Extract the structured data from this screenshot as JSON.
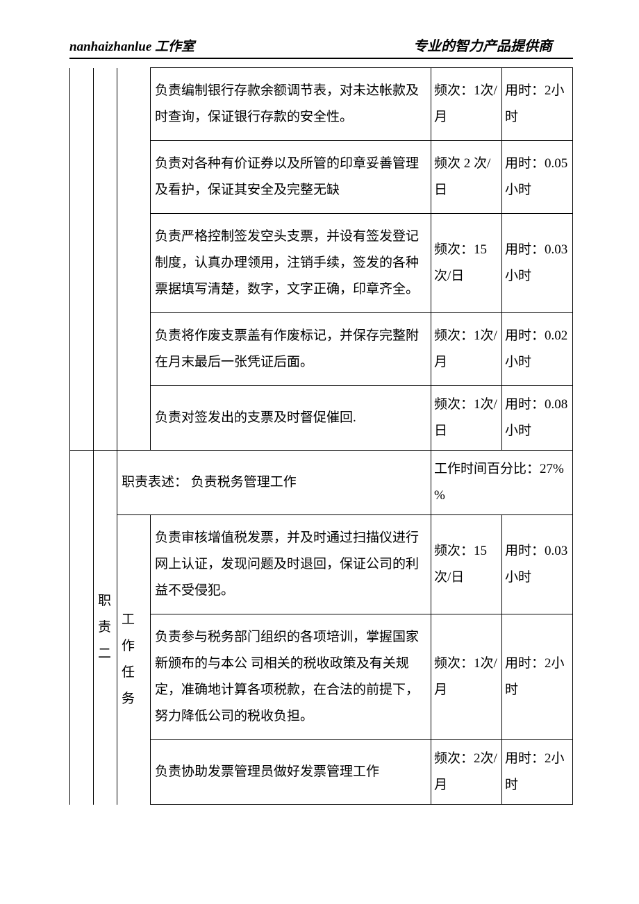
{
  "header": {
    "left_brand": "nanhaizhanlue",
    "left_suffix": " 工作室",
    "right": "专业的智力产品提供商"
  },
  "table": {
    "section1_rows": [
      {
        "desc": "负责编制银行存款余额调节表，对未达帐款及时查询，保证银行存款的安全性。",
        "freq": "频次：1次/ 月",
        "time": "用时：2小时"
      },
      {
        "desc": "负责对各种有价证券以及所管的印章妥善管理及看护，保证其安全及完整无缺",
        "freq": "频次 2 次/日",
        "time": "用时：0.05 小时"
      },
      {
        "desc": "负责严格控制签发空头支票，并设有签发登记制度，认真办理领用，注销手续，签发的各种票据填写清楚，数字，文字正确，印章齐全。",
        "freq": "频次：15次/日",
        "time": "用时：0.03 小时"
      },
      {
        "desc": "负责将作废支票盖有作废标记，并保存完整附在月末最后一张凭证后面。",
        "freq": "频次：1次/ 月",
        "time": "用时：0.02 小时"
      },
      {
        "desc": "负责对签发出的支票及时督促催回.",
        "freq": "频次：1次/ 日",
        "time": "用时：0.08 小时"
      }
    ],
    "section2": {
      "label": "职责二",
      "task_label": "工作任务",
      "duty_prefix": "职责表述：  ",
      "duty_text": "负责税务管理工作",
      "time_pct": "工作时间百分比：27% %",
      "rows": [
        {
          "desc": "负责审核增值税发票，并及时通过扫描仪进行网上认证，发现问题及时退回，保证公司的利益不受侵犯。",
          "freq": "频次：15次/日",
          "time": "用时：0.03 小时"
        },
        {
          "desc": "负责参与税务部门组织的各项培训，掌握国家新颁布的与本公\n司相关的税收政策及有关规定，准确地计算各项税款，在合法的前提下，努力降低公司的税收负担。",
          "freq": "频次：1次/月",
          "time": "用时：2小时"
        },
        {
          "desc": "负责协助发票管理员做好发票管理工作",
          "freq": "频次：2次/ 月",
          "time": "用时：2小时"
        }
      ]
    }
  }
}
